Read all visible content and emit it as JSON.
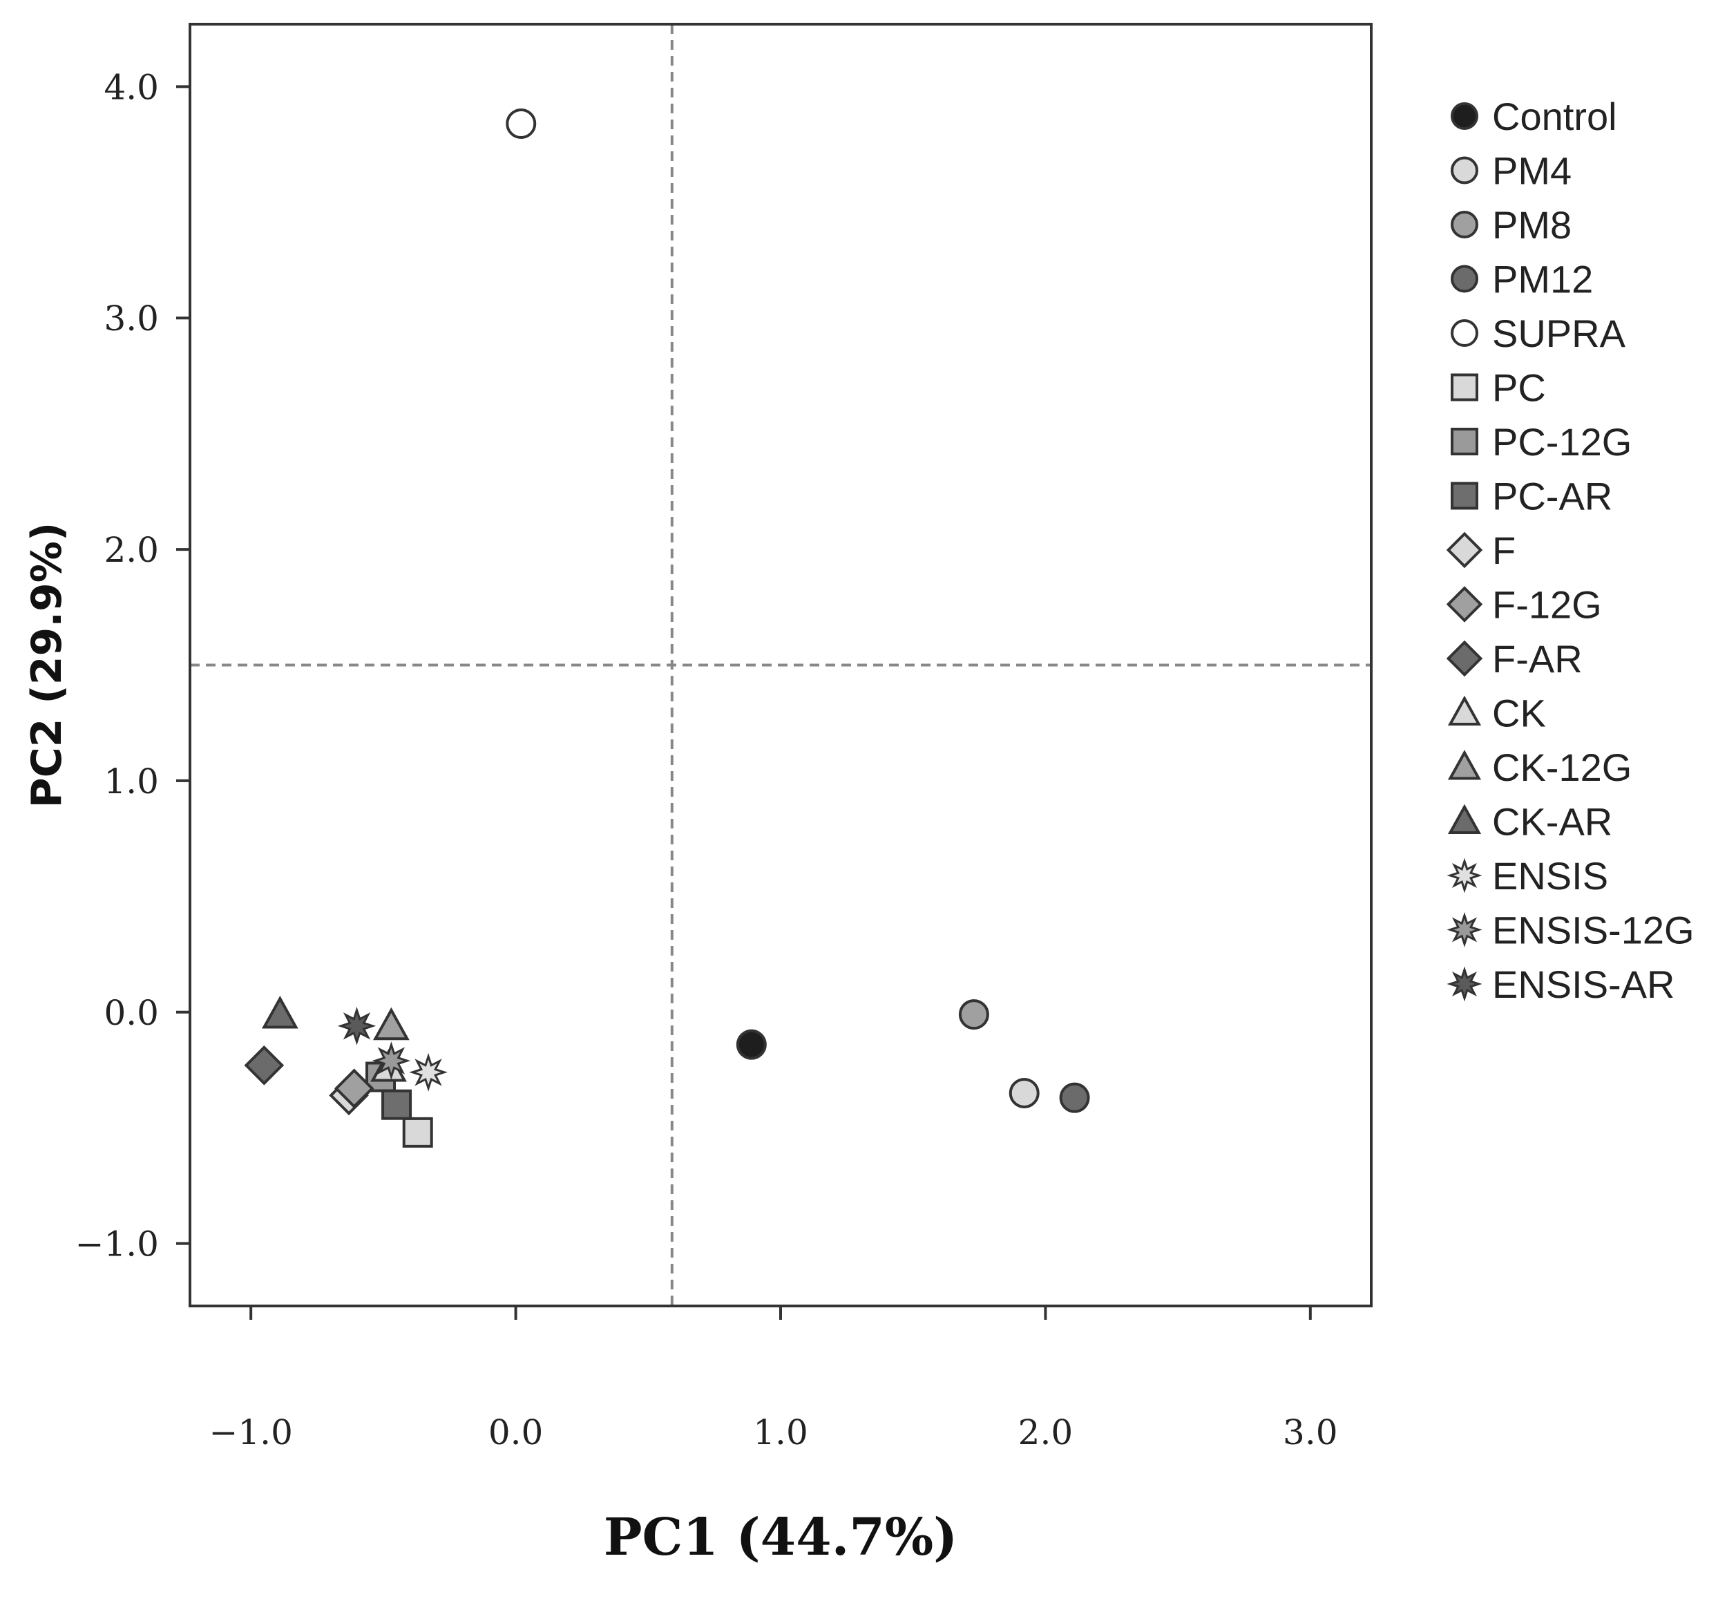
{
  "chart_data": {
    "type": "scatter",
    "xlabel": "PC1 (44.7%)",
    "ylabel": "PC2 (29.9%)",
    "xlim": [
      -1.23,
      3.23
    ],
    "ylim": [
      -1.27,
      4.27
    ],
    "x_ticks": [
      {
        "value": -1.0,
        "label": "−1.0"
      },
      {
        "value": 0.0,
        "label": "0.0"
      },
      {
        "value": 1.0,
        "label": "1.0"
      },
      {
        "value": 2.0,
        "label": "2.0"
      },
      {
        "value": 3.0,
        "label": "3.0"
      }
    ],
    "y_ticks": [
      {
        "value": -1.0,
        "label": "−1.0"
      },
      {
        "value": 0.0,
        "label": "0.0"
      },
      {
        "value": 1.0,
        "label": "1.0"
      },
      {
        "value": 2.0,
        "label": "2.0"
      },
      {
        "value": 3.0,
        "label": "3.0"
      },
      {
        "value": 4.0,
        "label": "4.0"
      }
    ],
    "reference_lines": {
      "x": 0.59,
      "y": 1.5
    },
    "legend_position": "right",
    "series": [
      {
        "name": "Control",
        "marker": "circle",
        "fill": "#1e1e1e",
        "x": 0.89,
        "y": -0.14
      },
      {
        "name": "PM4",
        "marker": "circle",
        "fill": "#d9d9d9",
        "x": 1.92,
        "y": -0.35
      },
      {
        "name": "PM8",
        "marker": "circle",
        "fill": "#a0a0a0",
        "x": 1.73,
        "y": -0.01
      },
      {
        "name": "PM12",
        "marker": "circle",
        "fill": "#6b6b6b",
        "x": 2.11,
        "y": -0.37
      },
      {
        "name": "SUPRA",
        "marker": "circle",
        "fill": "#ffffff",
        "x": 0.02,
        "y": 3.84
      },
      {
        "name": "PC",
        "marker": "square",
        "fill": "#d9d9d9",
        "x": -0.37,
        "y": -0.52
      },
      {
        "name": "PC-12G",
        "marker": "square",
        "fill": "#9a9a9a",
        "x": -0.51,
        "y": -0.28
      },
      {
        "name": "PC-AR",
        "marker": "square",
        "fill": "#6e6e6e",
        "x": -0.45,
        "y": -0.4
      },
      {
        "name": "F",
        "marker": "diamond",
        "fill": "#d9d9d9",
        "x": -0.63,
        "y": -0.36
      },
      {
        "name": "F-12G",
        "marker": "diamond",
        "fill": "#a0a0a0",
        "x": -0.61,
        "y": -0.33
      },
      {
        "name": "F-AR",
        "marker": "diamond",
        "fill": "#6b6b6b",
        "x": -0.95,
        "y": -0.23
      },
      {
        "name": "CK",
        "marker": "triangle",
        "fill": "#d9d9d9",
        "x": -0.48,
        "y": -0.24
      },
      {
        "name": "CK-12G",
        "marker": "triangle",
        "fill": "#a0a0a0",
        "x": -0.47,
        "y": -0.06
      },
      {
        "name": "CK-AR",
        "marker": "triangle",
        "fill": "#6b6b6b",
        "x": -0.89,
        "y": -0.01
      },
      {
        "name": "ENSIS",
        "marker": "star",
        "fill": "#e0e0e0",
        "x": -0.33,
        "y": -0.26
      },
      {
        "name": "ENSIS-12G",
        "marker": "star",
        "fill": "#9a9a9a",
        "x": -0.47,
        "y": -0.21
      },
      {
        "name": "ENSIS-AR",
        "marker": "star",
        "fill": "#5a5a5a",
        "x": -0.6,
        "y": -0.06
      }
    ]
  }
}
